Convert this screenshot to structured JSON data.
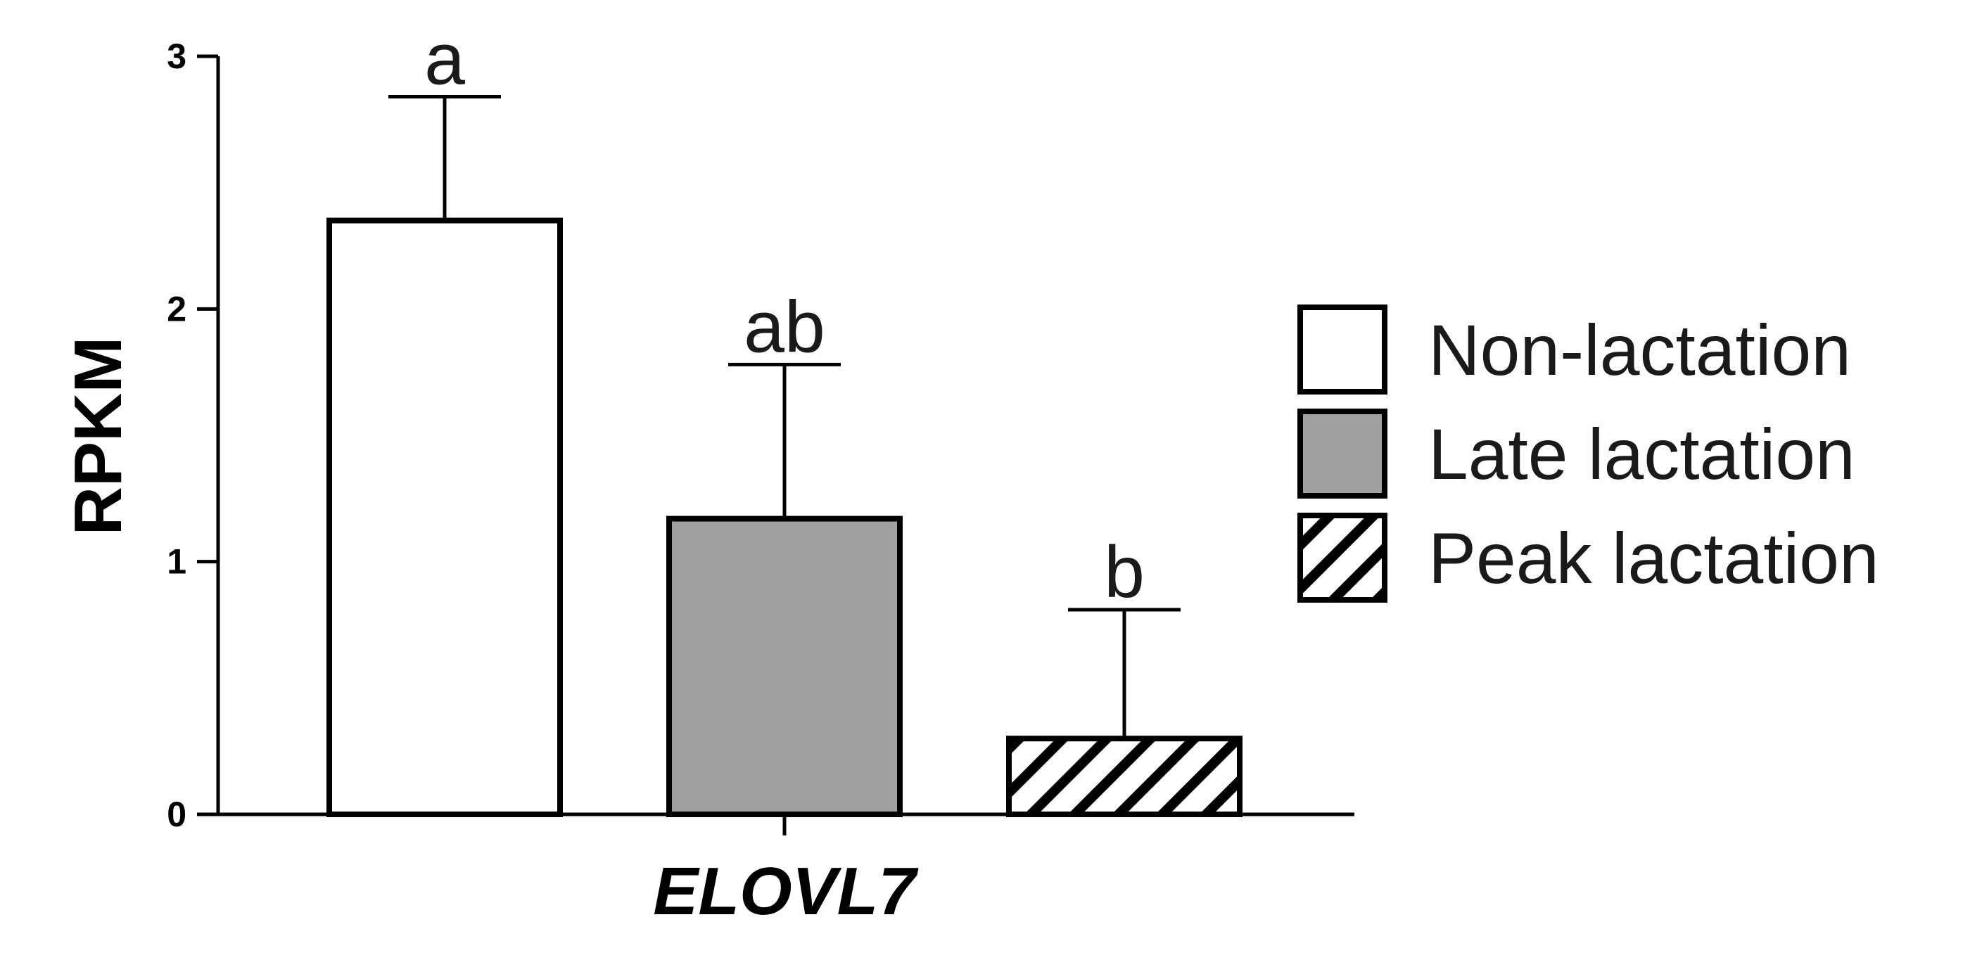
{
  "chart_data": {
    "type": "bar",
    "title": "",
    "xlabel": "ELOVL7",
    "ylabel": "RPKM",
    "ylim": [
      0,
      3
    ],
    "yticks": [
      0,
      1,
      2,
      3
    ],
    "grid": false,
    "legend_position": "right",
    "categories": [
      "ELOVL7"
    ],
    "series": [
      {
        "name": "Non-lactation",
        "values": [
          2.35
        ],
        "error": [
          0.49
        ],
        "significance": "a",
        "fill": "#ffffff",
        "pattern": "solid"
      },
      {
        "name": "Late lactation",
        "values": [
          1.17
        ],
        "error": [
          0.61
        ],
        "significance": "ab",
        "fill": "#a0a0a0",
        "pattern": "solid"
      },
      {
        "name": "Peak lactation",
        "values": [
          0.3
        ],
        "error": [
          0.51
        ],
        "significance": "b",
        "fill": "#ffffff",
        "pattern": "diagonal-hatch"
      }
    ]
  }
}
